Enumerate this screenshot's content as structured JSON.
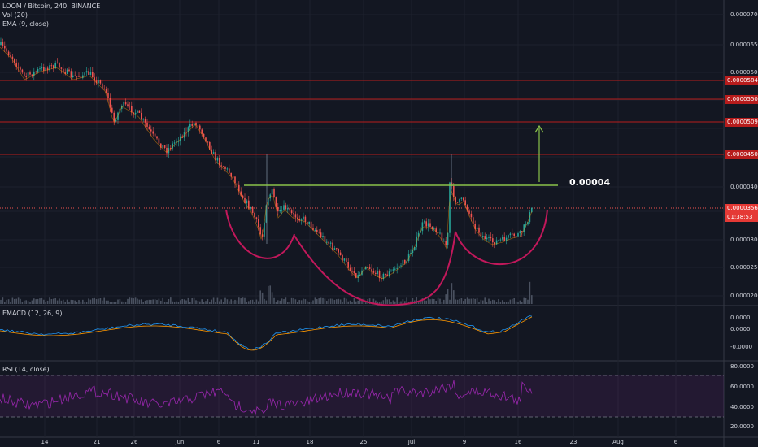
{
  "header": {
    "title": "LOOM / Bitcoin, 240, BINANCE",
    "vol": "Vol (20)",
    "ema": "EMA (9, close)"
  },
  "macd_label": "EMACD (12, 26, 9)",
  "rsi_label": "RSI (14, close)",
  "price_axis": [
    "0.00007000",
    "0.00006500",
    "0.00006000",
    "0.00005500",
    "0.00005000",
    "0.00004500",
    "0.00004000",
    "0.00003500",
    "0.00003000",
    "0.00002500",
    "0.00002000"
  ],
  "hlines": [
    {
      "value": "0.00005844",
      "color": "#b71c1c"
    },
    {
      "value": "0.00005503",
      "color": "#b71c1c"
    },
    {
      "value": "0.00005094",
      "color": "#b71c1c"
    },
    {
      "value": "0.00004503",
      "color": "#b71c1c"
    }
  ],
  "current_price": "0.00003567",
  "countdown": "01:38:53",
  "annotation": "0.00004",
  "macd_axis": [
    "0.0000",
    "-0.0000"
  ],
  "macd_axis_top": "0.0000",
  "rsi_axis": [
    "80.0000",
    "60.0000",
    "40.0000",
    "20.0000"
  ],
  "dates": [
    "14",
    "21",
    "26",
    "Jun",
    "6",
    "11",
    "18",
    "25",
    "Jul",
    "9",
    "16",
    "23",
    "30",
    "Aug",
    "6"
  ],
  "colors": {
    "up": "#26a69a",
    "down": "#ef5350",
    "neckline": "#8bc34a",
    "arc": "#c2185b",
    "rsi": "#9c27b0"
  }
}
